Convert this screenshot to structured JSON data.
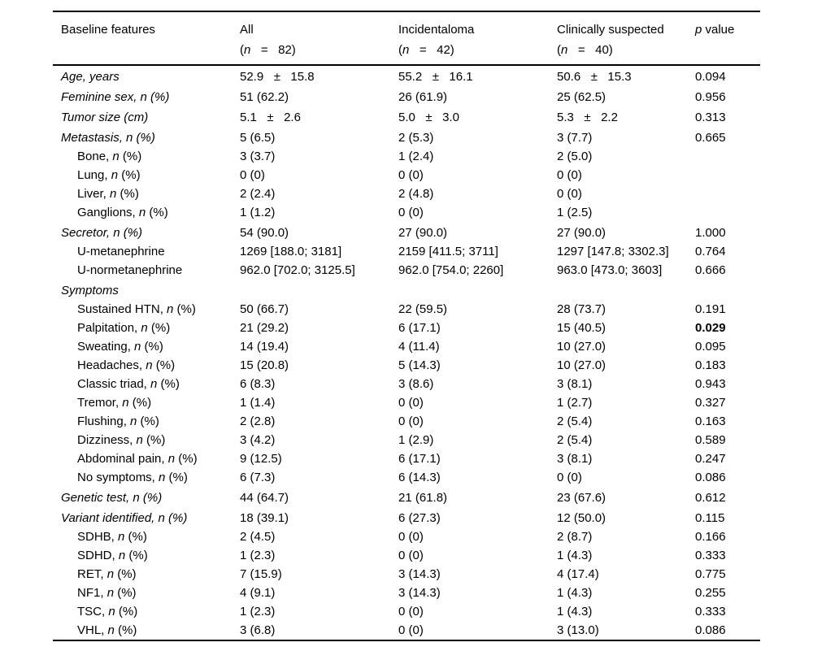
{
  "page": {
    "background": "#ffffff",
    "text_color": "#000000",
    "rule_color": "#000000"
  },
  "table": {
    "feature_header": "Baseline features",
    "groups": [
      {
        "label": "All",
        "n_line": "(n   =   82)"
      },
      {
        "label": "Incidentaloma",
        "n_line": "(n   =   42)"
      },
      {
        "label": "Clinically suspected",
        "n_line": "(n   =   40)"
      }
    ],
    "p_header": "p value",
    "rows": [
      {
        "label": "Age, years",
        "style": "main",
        "cells": [
          "52.9   ±   15.8",
          "55.2   ±   16.1",
          "50.6   ±   15.3"
        ],
        "p": "0.094"
      },
      {
        "label": "Feminine sex, n (%)",
        "style": "main",
        "cells": [
          "51 (62.2)",
          "26 (61.9)",
          "25 (62.5)"
        ],
        "p": "0.956"
      },
      {
        "label": "Tumor size (cm)",
        "style": "main",
        "cells": [
          "5.1   ±   2.6",
          "5.0   ±   3.0",
          "5.3   ±   2.2"
        ],
        "p": "0.313"
      },
      {
        "label": "Metastasis, n (%)",
        "style": "main",
        "cells": [
          "5 (6.5)",
          "2 (5.3)",
          "3 (7.7)"
        ],
        "p": "0.665"
      },
      {
        "label": "Bone, n (%)",
        "style": "sub",
        "cells": [
          "3 (3.7)",
          "1 (2.4)",
          "2 (5.0)"
        ],
        "p": ""
      },
      {
        "label": "Lung, n (%)",
        "style": "sub",
        "cells": [
          "0 (0)",
          "0 (0)",
          "0 (0)"
        ],
        "p": ""
      },
      {
        "label": "Liver, n (%)",
        "style": "sub",
        "cells": [
          "2 (2.4)",
          "2 (4.8)",
          "0 (0)"
        ],
        "p": ""
      },
      {
        "label": "Ganglions, n (%)",
        "style": "sub",
        "cells": [
          "1 (1.2)",
          "0 (0)",
          "1 (2.5)"
        ],
        "p": ""
      },
      {
        "label": "Secretor, n (%)",
        "style": "main",
        "cells": [
          "54 (90.0)",
          "27 (90.0)",
          "27 (90.0)"
        ],
        "p": "1.000"
      },
      {
        "label": "U-metanephrine",
        "style": "sub",
        "cells": [
          "1269 [188.0; 3181]",
          "2159 [411.5; 3711]",
          "1297 [147.8; 3302.3]"
        ],
        "p": "0.764"
      },
      {
        "label": "U-normetanephrine",
        "style": "sub",
        "cells": [
          "962.0 [702.0; 3125.5]",
          "962.0 [754.0; 2260]",
          "963.0 [473.0; 3603]"
        ],
        "p": "0.666"
      },
      {
        "label": "Symptoms",
        "style": "main",
        "cells": [
          "",
          "",
          ""
        ],
        "p": ""
      },
      {
        "label": "Sustained HTN, n (%)",
        "style": "sub",
        "cells": [
          "50 (66.7)",
          "22 (59.5)",
          "28 (73.7)"
        ],
        "p": "0.191"
      },
      {
        "label": "Palpitation, n (%)",
        "style": "sub",
        "cells": [
          "21 (29.2)",
          "6 (17.1)",
          "15 (40.5)"
        ],
        "p": "0.029",
        "p_bold": true
      },
      {
        "label": "Sweating, n (%)",
        "style": "sub",
        "cells": [
          "14 (19.4)",
          "4 (11.4)",
          "10 (27.0)"
        ],
        "p": "0.095"
      },
      {
        "label": "Headaches, n (%)",
        "style": "sub",
        "cells": [
          "15 (20.8)",
          "5 (14.3)",
          "10 (27.0)"
        ],
        "p": "0.183"
      },
      {
        "label": "Classic triad, n (%)",
        "style": "sub",
        "cells": [
          "6 (8.3)",
          "3 (8.6)",
          "3 (8.1)"
        ],
        "p": "0.943"
      },
      {
        "label": "Tremor, n (%)",
        "style": "sub",
        "cells": [
          "1 (1.4)",
          "0 (0)",
          "1 (2.7)"
        ],
        "p": "0.327"
      },
      {
        "label": "Flushing, n (%)",
        "style": "sub",
        "cells": [
          "2 (2.8)",
          "0 (0)",
          "2 (5.4)"
        ],
        "p": "0.163"
      },
      {
        "label": "Dizziness, n (%)",
        "style": "sub",
        "cells": [
          "3 (4.2)",
          "1 (2.9)",
          "2 (5.4)"
        ],
        "p": "0.589"
      },
      {
        "label": "Abdominal pain, n (%)",
        "style": "sub",
        "cells": [
          "9 (12.5)",
          "6 (17.1)",
          "3 (8.1)"
        ],
        "p": "0.247"
      },
      {
        "label": "No symptoms, n (%)",
        "style": "sub",
        "cells": [
          "6 (7.3)",
          "6 (14.3)",
          "0 (0)"
        ],
        "p": "0.086"
      },
      {
        "label": "Genetic test, n (%)",
        "style": "main",
        "cells": [
          "44 (64.7)",
          "21 (61.8)",
          "23 (67.6)"
        ],
        "p": "0.612"
      },
      {
        "label": "Variant identified, n (%)",
        "style": "main",
        "cells": [
          "18 (39.1)",
          "6 (27.3)",
          "12 (50.0)"
        ],
        "p": "0.115"
      },
      {
        "label": "SDHB, n (%)",
        "style": "sub",
        "cells": [
          "2 (4.5)",
          "0 (0)",
          "2 (8.7)"
        ],
        "p": "0.166"
      },
      {
        "label": "SDHD, n (%)",
        "style": "sub",
        "cells": [
          "1 (2.3)",
          "0 (0)",
          "1 (4.3)"
        ],
        "p": "0.333"
      },
      {
        "label": "RET, n (%)",
        "style": "sub",
        "cells": [
          "7 (15.9)",
          "3 (14.3)",
          "4 (17.4)"
        ],
        "p": "0.775"
      },
      {
        "label": "NF1, n (%)",
        "style": "sub",
        "cells": [
          "4 (9.1)",
          "3 (14.3)",
          "1 (4.3)"
        ],
        "p": "0.255"
      },
      {
        "label": "TSC, n (%)",
        "style": "sub",
        "cells": [
          "1 (2.3)",
          "0 (0)",
          "1 (4.3)"
        ],
        "p": "0.333"
      },
      {
        "label": "VHL, n (%)",
        "style": "sub",
        "cells": [
          "3 (6.8)",
          "0 (0)",
          "3 (13.0)"
        ],
        "p": "0.086"
      }
    ]
  }
}
